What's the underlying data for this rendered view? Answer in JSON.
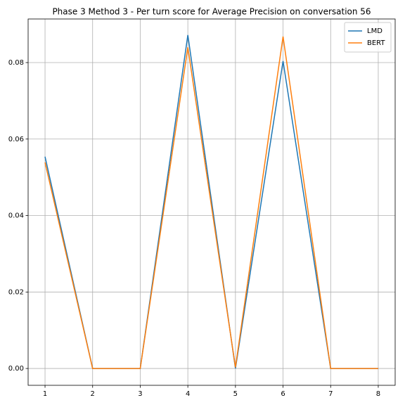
{
  "chart_data": {
    "type": "line",
    "title": "Phase 3 Method 3 - Per turn score for Average Precision on conversation 56",
    "x": [
      1,
      2,
      3,
      4,
      5,
      6,
      7,
      8
    ],
    "series": [
      {
        "name": "LMD",
        "color": "#1f77b4",
        "values": [
          0.0554,
          0,
          0,
          0.0872,
          0,
          0.0804,
          0,
          0
        ]
      },
      {
        "name": "BERT",
        "color": "#ff7f0e",
        "values": [
          0.0539,
          0,
          0,
          0.084,
          0.0003,
          0.0868,
          0,
          0
        ]
      }
    ],
    "xlim": [
      0.645,
      8.355
    ],
    "xticks": [
      1,
      2,
      3,
      4,
      5,
      6,
      7,
      8
    ],
    "ylim": [
      -0.0044,
      0.0914
    ],
    "yticks": [
      {
        "value": 0,
        "label": "0.00"
      },
      {
        "value": 0.02,
        "label": "0.02"
      },
      {
        "value": 0.04,
        "label": "0.04"
      },
      {
        "value": 0.06,
        "label": "0.06"
      },
      {
        "value": 0.08,
        "label": "0.08"
      }
    ],
    "grid": true,
    "legend": "upper right"
  }
}
